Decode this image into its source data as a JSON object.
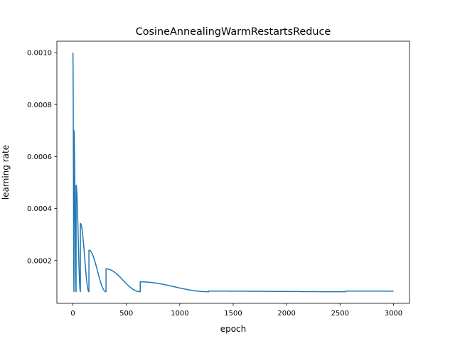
{
  "chart_data": {
    "type": "line",
    "title": "CosineAnnealingWarmRestartsReduce",
    "xlabel": "epoch",
    "ylabel": "learning rate",
    "xlim": [
      -150,
      3150
    ],
    "ylim": [
      3.53e-05,
      0.001044
    ],
    "grid": false,
    "x_ticks": [
      0,
      500,
      1000,
      1500,
      2000,
      2500,
      3000
    ],
    "x_tick_labels": [
      "0",
      "500",
      "1000",
      "1500",
      "2000",
      "2500",
      "3000"
    ],
    "y_ticks": [
      0.0002,
      0.0004,
      0.0006,
      0.0008,
      0.001
    ],
    "y_tick_labels": [
      "0.0002",
      "0.0004",
      "0.0006",
      "0.0008",
      "0.0010"
    ],
    "line_color": "#1f77b4",
    "schedule": {
      "eta_min": 8e-05,
      "first_cycle_epochs": 10,
      "cycle_multiplier": 2,
      "total_epochs": 3000,
      "cycles": [
        {
          "start": 0,
          "length": 10,
          "max_lr": 0.001
        },
        {
          "start": 10,
          "length": 20,
          "max_lr": 0.0007
        },
        {
          "start": 30,
          "length": 40,
          "max_lr": 0.00049
        },
        {
          "start": 70,
          "length": 80,
          "max_lr": 0.000343
        },
        {
          "start": 150,
          "length": 160,
          "max_lr": 0.00024
        },
        {
          "start": 310,
          "length": 320,
          "max_lr": 0.000168
        },
        {
          "start": 630,
          "length": 640,
          "max_lr": 0.000118
        },
        {
          "start": 1270,
          "length": 1280,
          "max_lr": 8.24e-05
        },
        {
          "start": 2550,
          "length": 2560,
          "max_lr": 8.24e-05
        }
      ]
    }
  }
}
